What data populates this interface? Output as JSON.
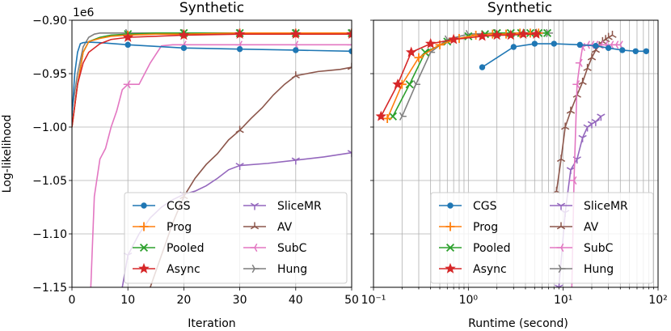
{
  "colors": {
    "CGS": "#1f77b4",
    "Prog": "#ff7f0e",
    "Pooled": "#2ca02c",
    "Async": "#d62728",
    "SliceMR": "#9467bd",
    "AV": "#8c564b",
    "SubC": "#e377c2",
    "Hung": "#7f7f7f"
  },
  "chart_data": [
    {
      "type": "line",
      "title": "Synthetic",
      "xlabel": "Iteration",
      "ylabel": "Log-likelihood",
      "y_offset_label": "1e6",
      "xlim": [
        0,
        50
      ],
      "ylim": [
        -1.15,
        -0.9
      ],
      "xticks": [
        0,
        10,
        20,
        30,
        40,
        50
      ],
      "xtick_labels": [
        "0",
        "10",
        "20",
        "30",
        "40",
        "50"
      ],
      "yticks": [
        -0.9,
        -0.95,
        -1.0,
        -1.05,
        -1.1,
        -1.15
      ],
      "ytick_labels": [
        "−0.90",
        "−0.95",
        "−1.00",
        "−1.05",
        "−1.10",
        "−1.15"
      ],
      "legend": "lower-right",
      "series": [
        {
          "name": "CGS",
          "marker": "circle",
          "marker_every": 10,
          "x": [
            0,
            0.5,
            1,
            1.5,
            2,
            3,
            5,
            10,
            20,
            30,
            40,
            50
          ],
          "y": [
            -0.99,
            -0.95,
            -0.93,
            -0.922,
            -0.921,
            -0.9205,
            -0.921,
            -0.923,
            -0.926,
            -0.927,
            -0.928,
            -0.929
          ]
        },
        {
          "name": "Prog",
          "marker": "plus",
          "marker_every": 10,
          "x": [
            0,
            1,
            2,
            3,
            5,
            7,
            10,
            15,
            20,
            30,
            40,
            50
          ],
          "y": [
            -1.0,
            -0.96,
            -0.93,
            -0.92,
            -0.917,
            -0.915,
            -0.914,
            -0.913,
            -0.913,
            -0.912,
            -0.912,
            -0.912
          ]
        },
        {
          "name": "Pooled",
          "marker": "x",
          "marker_every": 10,
          "x": [
            0,
            1,
            2,
            3,
            5,
            7,
            10,
            15,
            20,
            30,
            40,
            50
          ],
          "y": [
            -1.0,
            -0.96,
            -0.93,
            -0.92,
            -0.916,
            -0.914,
            -0.913,
            -0.912,
            -0.912,
            -0.912,
            -0.912,
            -0.912
          ]
        },
        {
          "name": "Async",
          "marker": "star",
          "marker_every": 10,
          "x": [
            0,
            1,
            2,
            3,
            5,
            7,
            10,
            15,
            20,
            30,
            40,
            50
          ],
          "y": [
            -1.0,
            -0.96,
            -0.94,
            -0.93,
            -0.922,
            -0.918,
            -0.916,
            -0.915,
            -0.914,
            -0.913,
            -0.913,
            -0.913
          ]
        },
        {
          "name": "SliceMR",
          "marker": "tri_down",
          "marker_every": 10,
          "x": [
            8,
            9,
            10,
            12,
            14,
            16,
            18,
            20,
            22,
            24,
            26,
            28,
            30,
            35,
            40,
            45,
            50
          ],
          "y": [
            -1.2,
            -1.15,
            -1.12,
            -1.1,
            -1.085,
            -1.075,
            -1.068,
            -1.063,
            -1.06,
            -1.055,
            -1.048,
            -1.04,
            -1.036,
            -1.034,
            -1.031,
            -1.028,
            -1.024
          ]
        },
        {
          "name": "AV",
          "marker": "tri_up",
          "marker_every": 10,
          "x": [
            12,
            14,
            16,
            18,
            20,
            22,
            24,
            26,
            28,
            30,
            32,
            34,
            36,
            38,
            40,
            42,
            44,
            46,
            48,
            50
          ],
          "y": [
            -1.2,
            -1.15,
            -1.12,
            -1.09,
            -1.065,
            -1.048,
            -1.035,
            -1.025,
            -1.012,
            -1.003,
            -0.992,
            -0.982,
            -0.97,
            -0.96,
            -0.952,
            -0.95,
            -0.948,
            -0.947,
            -0.946,
            -0.944
          ]
        },
        {
          "name": "SubC",
          "marker": "tri_left",
          "marker_every": 10,
          "x": [
            3,
            4,
            5,
            6,
            7,
            8,
            9,
            10,
            12,
            14,
            16,
            18,
            20,
            30,
            40,
            50
          ],
          "y": [
            -1.2,
            -1.065,
            -1.03,
            -1.02,
            -1.0,
            -0.985,
            -0.965,
            -0.96,
            -0.96,
            -0.94,
            -0.924,
            -0.923,
            -0.923,
            -0.923,
            -0.923,
            -0.923
          ]
        },
        {
          "name": "Hung",
          "marker": "tri_right",
          "marker_every": 10,
          "x": [
            0,
            1,
            2,
            3,
            4,
            5,
            10,
            20,
            30,
            40,
            50
          ],
          "y": [
            -0.985,
            -0.95,
            -0.925,
            -0.916,
            -0.913,
            -0.912,
            -0.912,
            -0.912,
            -0.912,
            -0.912,
            -0.912
          ]
        }
      ]
    },
    {
      "type": "line",
      "title": "Synthetic",
      "xlabel": "Runtime (second)",
      "xscale": "log",
      "xlim": [
        0.1,
        100
      ],
      "ylim": [
        -1.15,
        -0.9
      ],
      "xtick_labels": [
        "10⁻¹",
        "10⁰",
        "10¹",
        "10²"
      ],
      "legend": "lower-right",
      "series": [
        {
          "name": "CGS",
          "marker": "circle",
          "marker_every": 1,
          "x": [
            1.4,
            3.0,
            5.0,
            8.0,
            15.0,
            22.0,
            30.0,
            42.0,
            58.0,
            75.0
          ],
          "y": [
            -0.944,
            -0.925,
            -0.922,
            -0.922,
            -0.923,
            -0.924,
            -0.926,
            -0.928,
            -0.929,
            -0.929
          ]
        },
        {
          "name": "Prog",
          "marker": "plus",
          "marker_every": 5,
          "x": [
            0.14,
            0.2,
            0.3,
            0.5,
            0.8,
            1.2,
            1.8,
            2.5,
            3.5,
            4.5,
            5.5
          ],
          "y": [
            -0.992,
            -0.96,
            -0.935,
            -0.923,
            -0.917,
            -0.914,
            -0.913,
            -0.913,
            -0.912,
            -0.912,
            -0.912
          ]
        },
        {
          "name": "Pooled",
          "marker": "x",
          "marker_every": 1,
          "x": [
            0.16,
            0.24,
            0.35,
            0.6,
            1.0,
            1.5,
            2.0,
            2.8,
            3.6,
            4.5,
            5.5,
            6.8
          ],
          "y": [
            -0.99,
            -0.96,
            -0.93,
            -0.92,
            -0.915,
            -0.913,
            -0.912,
            -0.912,
            -0.912,
            -0.912,
            -0.912,
            -0.912
          ]
        },
        {
          "name": "Async",
          "marker": "star",
          "marker_every": 1,
          "x": [
            0.12,
            0.18,
            0.25,
            0.4,
            0.7,
            1.4,
            2.0,
            2.8,
            3.8,
            5.2
          ],
          "y": [
            -0.99,
            -0.96,
            -0.93,
            -0.922,
            -0.918,
            -0.915,
            -0.914,
            -0.914,
            -0.913,
            -0.913
          ]
        },
        {
          "name": "SliceMR",
          "marker": "tri_down",
          "marker_every": 1,
          "x": [
            9.0,
            10.5,
            12.0,
            14.0,
            16.0,
            18.0,
            20.0,
            22.0,
            25.0
          ],
          "y": [
            -1.15,
            -1.08,
            -1.04,
            -1.03,
            -1.01,
            -1.0,
            -0.997,
            -0.995,
            -0.99
          ]
        },
        {
          "name": "AV",
          "marker": "tri_up",
          "marker_every": 1,
          "x": [
            8.5,
            9.5,
            10.5,
            12.0,
            14.0,
            16.0,
            18.0,
            20.0,
            22.0,
            24.0,
            26.0,
            28.0,
            30.0,
            33.0
          ],
          "y": [
            -1.06,
            -1.03,
            -1.0,
            -0.985,
            -0.97,
            -0.958,
            -0.945,
            -0.935,
            -0.928,
            -0.924,
            -0.92,
            -0.918,
            -0.916,
            -0.914
          ]
        },
        {
          "name": "SubC",
          "marker": "tri_left",
          "marker_every": 1,
          "x": [
            12.0,
            13.0,
            14.0,
            15.0,
            16.0,
            18.0,
            20.0,
            22.0,
            25.0,
            28.0,
            32.0,
            36.0,
            40.0
          ],
          "y": [
            -1.2,
            -1.05,
            -0.96,
            -0.94,
            -0.925,
            -0.923,
            -0.923,
            -0.923,
            -0.923,
            -0.923,
            -0.923,
            -0.923,
            -0.923
          ]
        },
        {
          "name": "Hung",
          "marker": "tri_right",
          "marker_every": 1,
          "x": [
            0.2,
            0.28,
            0.4,
            0.6,
            1.0,
            2.0,
            4.0,
            7.0
          ],
          "y": [
            -0.99,
            -0.96,
            -0.93,
            -0.918,
            -0.913,
            -0.912,
            -0.912,
            -0.912
          ]
        }
      ]
    }
  ]
}
